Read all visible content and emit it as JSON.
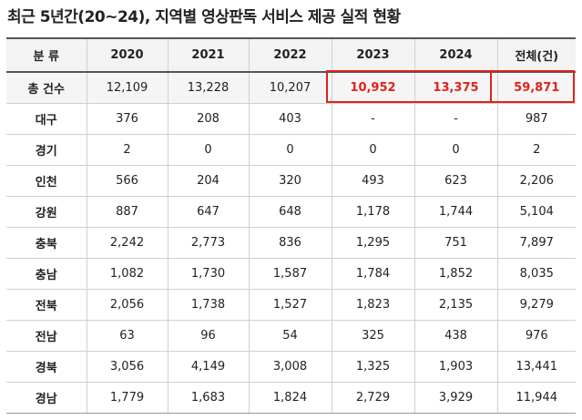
{
  "title": "최근 5년간(20~24), 지역별 영상판독 서비스 제공 실적 현황",
  "table": {
    "headers": [
      "분 류",
      "2020",
      "2021",
      "2022",
      "2023",
      "2024",
      "전체(건)"
    ],
    "total_row": {
      "label": "총 건수",
      "values": [
        "12,109",
        "13,228",
        "10,207",
        "10,952",
        "13,375",
        "59,871"
      ]
    },
    "rows": [
      {
        "label": "대구",
        "values": [
          "376",
          "208",
          "403",
          "-",
          "-",
          "987"
        ]
      },
      {
        "label": "경기",
        "values": [
          "2",
          "0",
          "0",
          "0",
          "0",
          "2"
        ]
      },
      {
        "label": "인천",
        "values": [
          "566",
          "204",
          "320",
          "493",
          "623",
          "2,206"
        ]
      },
      {
        "label": "강원",
        "values": [
          "887",
          "647",
          "648",
          "1,178",
          "1,744",
          "5,104"
        ]
      },
      {
        "label": "충북",
        "values": [
          "2,242",
          "2,773",
          "836",
          "1,295",
          "751",
          "7,897"
        ]
      },
      {
        "label": "충남",
        "values": [
          "1,082",
          "1,730",
          "1,587",
          "1,784",
          "1,852",
          "8,035"
        ]
      },
      {
        "label": "전북",
        "values": [
          "2,056",
          "1,738",
          "1,527",
          "1,823",
          "2,135",
          "9,279"
        ]
      },
      {
        "label": "전남",
        "values": [
          "63",
          "96",
          "54",
          "325",
          "438",
          "976"
        ]
      },
      {
        "label": "경북",
        "values": [
          "3,056",
          "4,149",
          "3,008",
          "1,325",
          "1,903",
          "13,441"
        ]
      },
      {
        "label": "경남",
        "values": [
          "1,779",
          "1,683",
          "1,824",
          "2,729",
          "3,929",
          "11,944"
        ]
      }
    ]
  },
  "colors": {
    "highlight": "#e0221c",
    "header_bg": "#f3f3f3"
  }
}
